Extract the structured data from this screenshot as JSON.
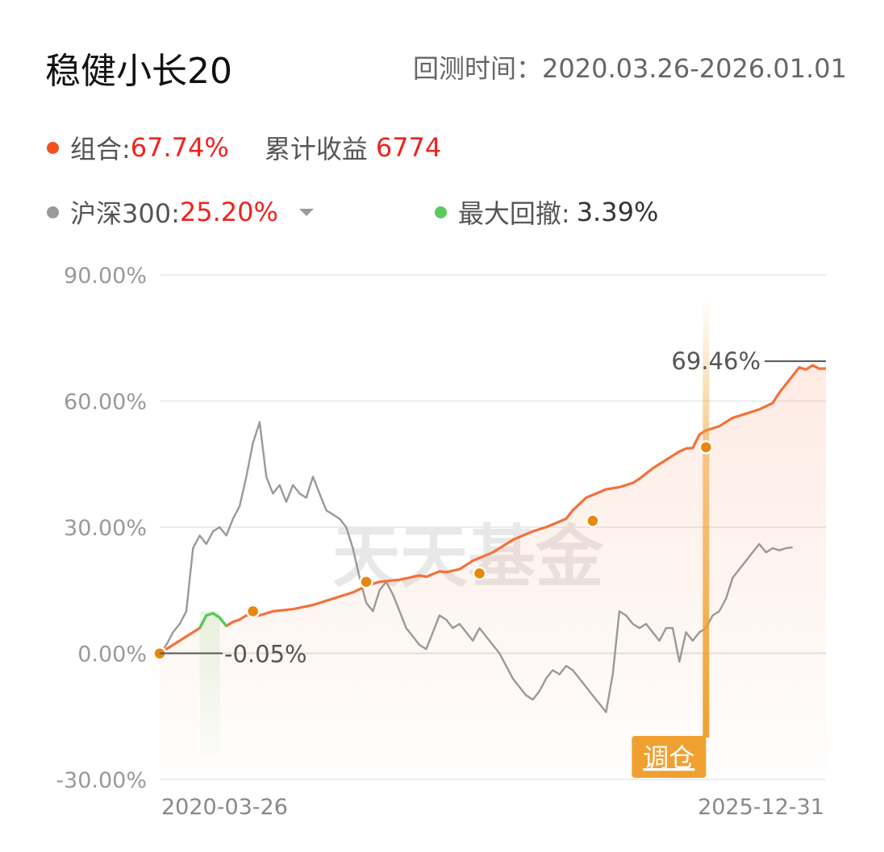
{
  "header": {
    "title": "稳健小长20",
    "range_label": "回测时间：",
    "range_value": "2020.03.26-2026.01.01"
  },
  "legend": {
    "portfolio_label": "组合:",
    "portfolio_value": "67.74%",
    "cumulative_label": "累计收益",
    "cumulative_value": "6774",
    "benchmark_label": "沪深300:",
    "benchmark_value": "25.20%",
    "drawdown_label": "最大回撤:",
    "drawdown_value": "3.39%"
  },
  "colors": {
    "portfolio": "#f4703a",
    "benchmark": "#999999",
    "drawdown": "#5bc95b",
    "rebalance": "#f0a030",
    "rebalance_marker": "#e8870d",
    "value_red": "#f0221e"
  },
  "icons": {
    "dropdown": "caret-down-icon"
  },
  "chart_data": {
    "type": "line",
    "ylim": [
      -30,
      90
    ],
    "yticks": [
      "90.00%",
      "60.00%",
      "30.00%",
      "0.00%",
      "-30.00%"
    ],
    "ytick_values": [
      90,
      60,
      30,
      0,
      -30
    ],
    "x_start_label": "2020-03-26",
    "x_end_label": "2025-12-31",
    "watermark": "天天基金",
    "grid": true,
    "series": [
      {
        "name": "组合",
        "color": "#f4703a",
        "points": [
          [
            0,
            0
          ],
          [
            2,
            2
          ],
          [
            4,
            4
          ],
          [
            6,
            6
          ],
          [
            7,
            9
          ],
          [
            8,
            9.5
          ],
          [
            9,
            8.5
          ],
          [
            10,
            6.5
          ],
          [
            11,
            7.5
          ],
          [
            12,
            8
          ],
          [
            13,
            9
          ],
          [
            15,
            9
          ],
          [
            17,
            10
          ],
          [
            20,
            10.5
          ],
          [
            23,
            11.5
          ],
          [
            26,
            13
          ],
          [
            29,
            14.5
          ],
          [
            31,
            16
          ],
          [
            33,
            17
          ],
          [
            36,
            17.5
          ],
          [
            39,
            18.5
          ],
          [
            40,
            18.2
          ],
          [
            42,
            19.5
          ],
          [
            43,
            19.3
          ],
          [
            45,
            20
          ],
          [
            47,
            22
          ],
          [
            50,
            24
          ],
          [
            53,
            27
          ],
          [
            56,
            29
          ],
          [
            58,
            30
          ],
          [
            61,
            32
          ],
          [
            62,
            34
          ],
          [
            64,
            37
          ],
          [
            67,
            39
          ],
          [
            69,
            39.5
          ],
          [
            71,
            40.5
          ],
          [
            72,
            41.5
          ],
          [
            74,
            44
          ],
          [
            76,
            46
          ],
          [
            78,
            48
          ],
          [
            79,
            48.7
          ],
          [
            80,
            48.8
          ],
          [
            81,
            52
          ],
          [
            82,
            53
          ],
          [
            84,
            54
          ],
          [
            86,
            56
          ],
          [
            88,
            57
          ],
          [
            90,
            58
          ],
          [
            92,
            59.5
          ],
          [
            93,
            62
          ],
          [
            95,
            66
          ],
          [
            96,
            68
          ],
          [
            97,
            67.5
          ],
          [
            98,
            68.5
          ],
          [
            99,
            67.7
          ],
          [
            100,
            67.74
          ]
        ]
      },
      {
        "name": "沪深300",
        "color": "#999999",
        "points": [
          [
            0,
            0
          ],
          [
            1,
            2
          ],
          [
            2,
            5
          ],
          [
            3,
            7
          ],
          [
            4,
            10
          ],
          [
            5,
            25
          ],
          [
            6,
            28
          ],
          [
            7,
            26
          ],
          [
            8,
            29
          ],
          [
            9,
            30
          ],
          [
            10,
            28
          ],
          [
            11,
            32
          ],
          [
            12,
            35
          ],
          [
            13,
            42
          ],
          [
            14,
            50
          ],
          [
            15,
            55
          ],
          [
            16,
            42
          ],
          [
            17,
            38
          ],
          [
            18,
            40
          ],
          [
            19,
            36
          ],
          [
            20,
            40
          ],
          [
            21,
            38
          ],
          [
            22,
            37
          ],
          [
            23,
            42
          ],
          [
            24,
            38
          ],
          [
            25,
            34
          ],
          [
            26,
            33
          ],
          [
            27,
            32
          ],
          [
            28,
            30
          ],
          [
            29,
            25
          ],
          [
            30,
            18
          ],
          [
            31,
            12
          ],
          [
            32,
            10
          ],
          [
            33,
            15
          ],
          [
            34,
            17
          ],
          [
            35,
            14
          ],
          [
            36,
            10
          ],
          [
            37,
            6
          ],
          [
            38,
            4
          ],
          [
            39,
            2
          ],
          [
            40,
            1
          ],
          [
            41,
            5
          ],
          [
            42,
            9
          ],
          [
            43,
            8
          ],
          [
            44,
            6
          ],
          [
            45,
            7
          ],
          [
            46,
            5
          ],
          [
            47,
            3
          ],
          [
            48,
            6
          ],
          [
            49,
            4
          ],
          [
            50,
            2
          ],
          [
            51,
            0
          ],
          [
            52,
            -3
          ],
          [
            53,
            -6
          ],
          [
            54,
            -8
          ],
          [
            55,
            -10
          ],
          [
            56,
            -11
          ],
          [
            57,
            -9
          ],
          [
            58,
            -6
          ],
          [
            59,
            -4
          ],
          [
            60,
            -5
          ],
          [
            61,
            -3
          ],
          [
            62,
            -4
          ],
          [
            63,
            -6
          ],
          [
            64,
            -8
          ],
          [
            65,
            -10
          ],
          [
            66,
            -12
          ],
          [
            67,
            -14
          ],
          [
            68,
            -5
          ],
          [
            69,
            10
          ],
          [
            70,
            9
          ],
          [
            71,
            7
          ],
          [
            72,
            6
          ],
          [
            73,
            7
          ],
          [
            74,
            5
          ],
          [
            75,
            3
          ],
          [
            76,
            6
          ],
          [
            77,
            6
          ],
          [
            78,
            -2
          ],
          [
            79,
            5
          ],
          [
            80,
            3
          ],
          [
            81,
            5
          ],
          [
            82,
            6
          ],
          [
            83,
            9
          ],
          [
            84,
            10
          ],
          [
            85,
            13
          ],
          [
            86,
            18
          ],
          [
            87,
            20
          ],
          [
            88,
            22
          ],
          [
            89,
            24
          ],
          [
            90,
            26
          ],
          [
            91,
            24
          ],
          [
            92,
            25
          ],
          [
            93,
            24.5
          ],
          [
            94,
            25
          ],
          [
            95,
            25.2
          ]
        ]
      }
    ],
    "drawdown_window": [
      6,
      9
    ],
    "rebalance_points": [
      [
        0,
        -0.05
      ],
      [
        14,
        10
      ],
      [
        31,
        17
      ],
      [
        48,
        19
      ],
      [
        65,
        31.5
      ],
      [
        82,
        49
      ]
    ],
    "annotations": {
      "start_label": "-0.05%",
      "max_label": "69.46%",
      "max_value": 69.46,
      "rebalance_label": "调仓",
      "rebalance_at": 82
    }
  }
}
